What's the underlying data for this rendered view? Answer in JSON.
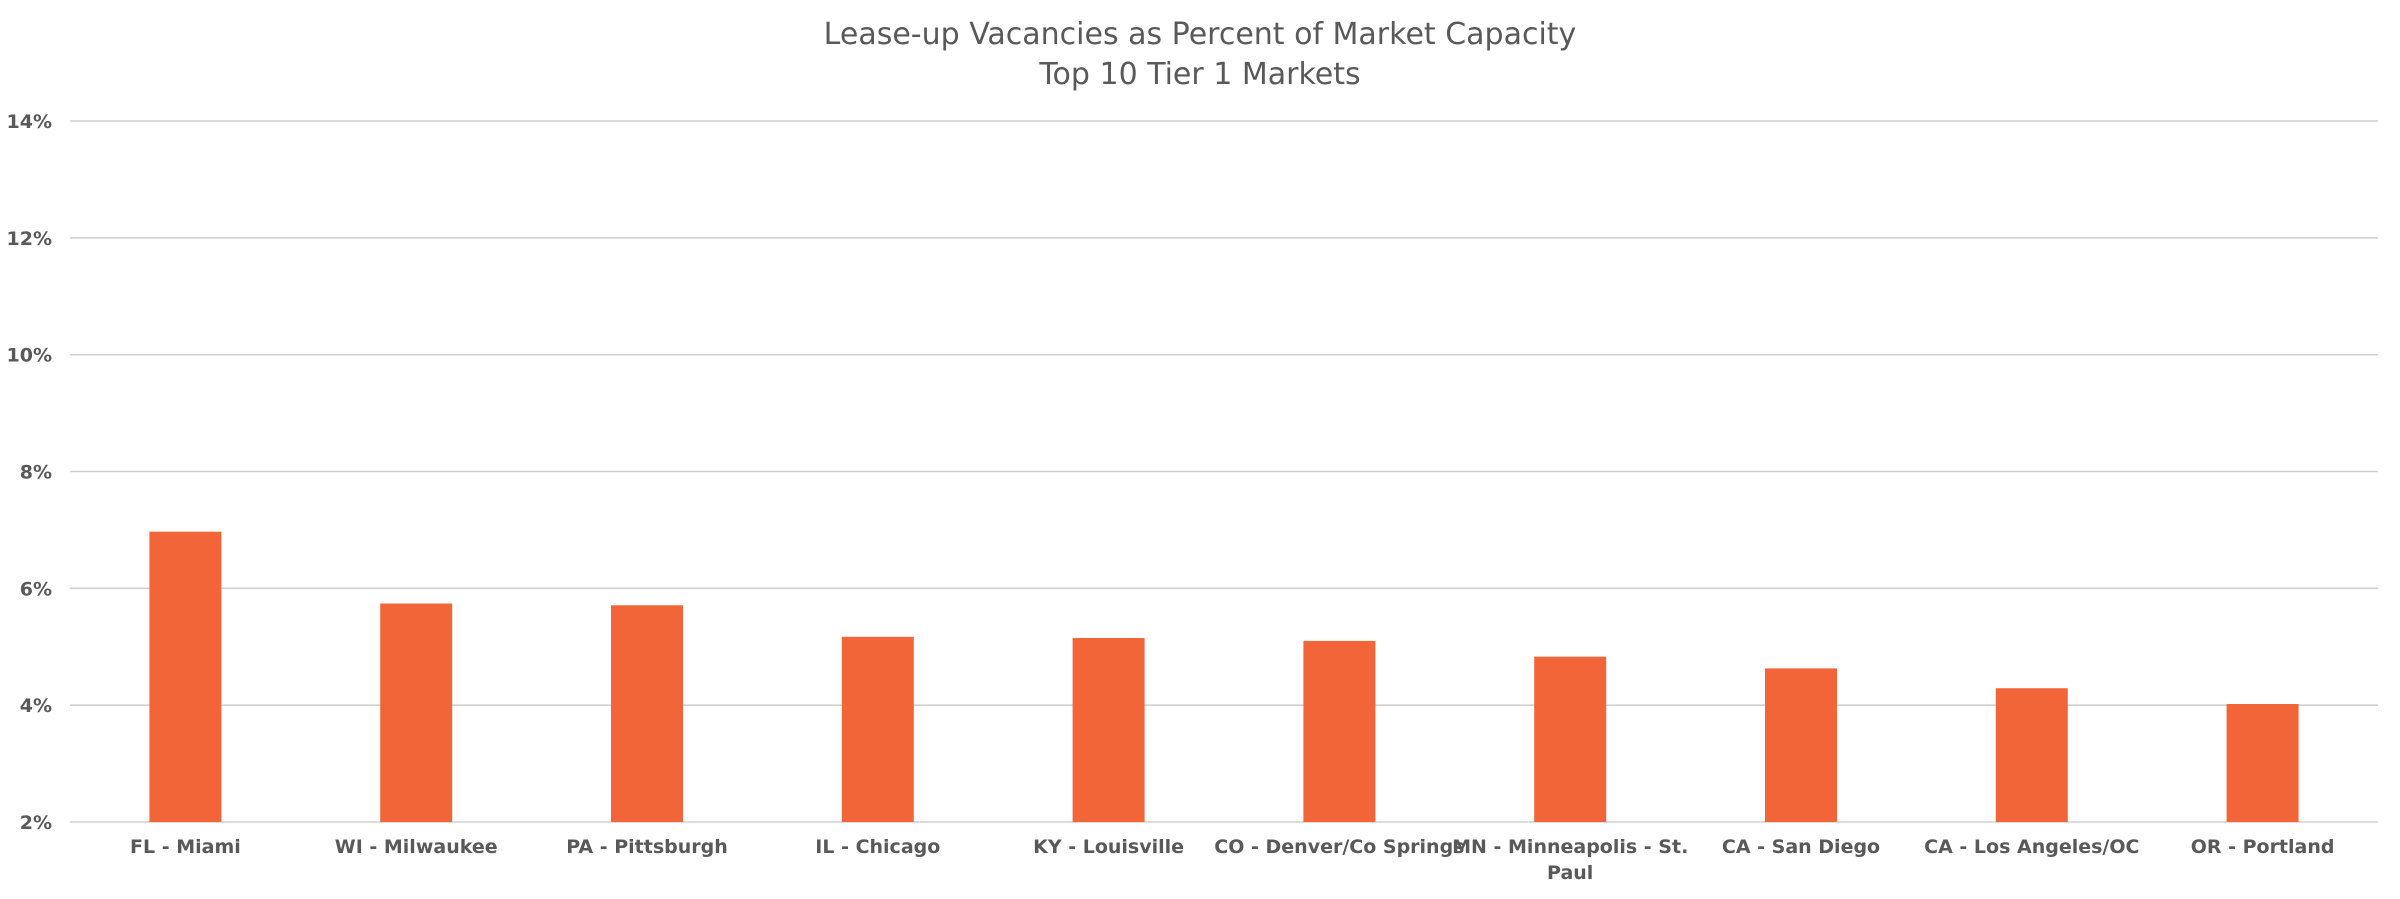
{
  "chart_data": {
    "type": "bar",
    "title": "Lease-up Vacancies as Percent of Market Capacity",
    "subtitle": "Top 10 Tier 1 Markets",
    "xlabel": "",
    "ylabel": "",
    "ylim": [
      2,
      14
    ],
    "yticks": [
      "2%",
      "4%",
      "6%",
      "8%",
      "10%",
      "12%",
      "14%"
    ],
    "grid": true,
    "legend": "none",
    "bar_color": "#f26539",
    "categories": [
      "FL - Miami",
      "WI - Milwaukee",
      "PA - Pittsburgh",
      "IL - Chicago",
      "KY - Louisville",
      "CO - Denver/Co Springs",
      "MN - Minneapolis - St. Paul",
      "CA - San Diego",
      "CA - Los Angeles/OC",
      "OR - Portland"
    ],
    "category_lines": [
      [
        "FL - Miami"
      ],
      [
        "WI - Milwaukee"
      ],
      [
        "PA - Pittsburgh"
      ],
      [
        "IL - Chicago"
      ],
      [
        "KY - Louisville"
      ],
      [
        "CO - Denver/Co Springs"
      ],
      [
        "MN - Minneapolis - St.",
        "Paul"
      ],
      [
        "CA - San Diego"
      ],
      [
        "CA - Los Angeles/OC"
      ],
      [
        "OR - Portland"
      ]
    ],
    "values": [
      6.97,
      5.74,
      5.71,
      5.17,
      5.15,
      5.1,
      4.83,
      4.63,
      4.29,
      4.02
    ]
  }
}
